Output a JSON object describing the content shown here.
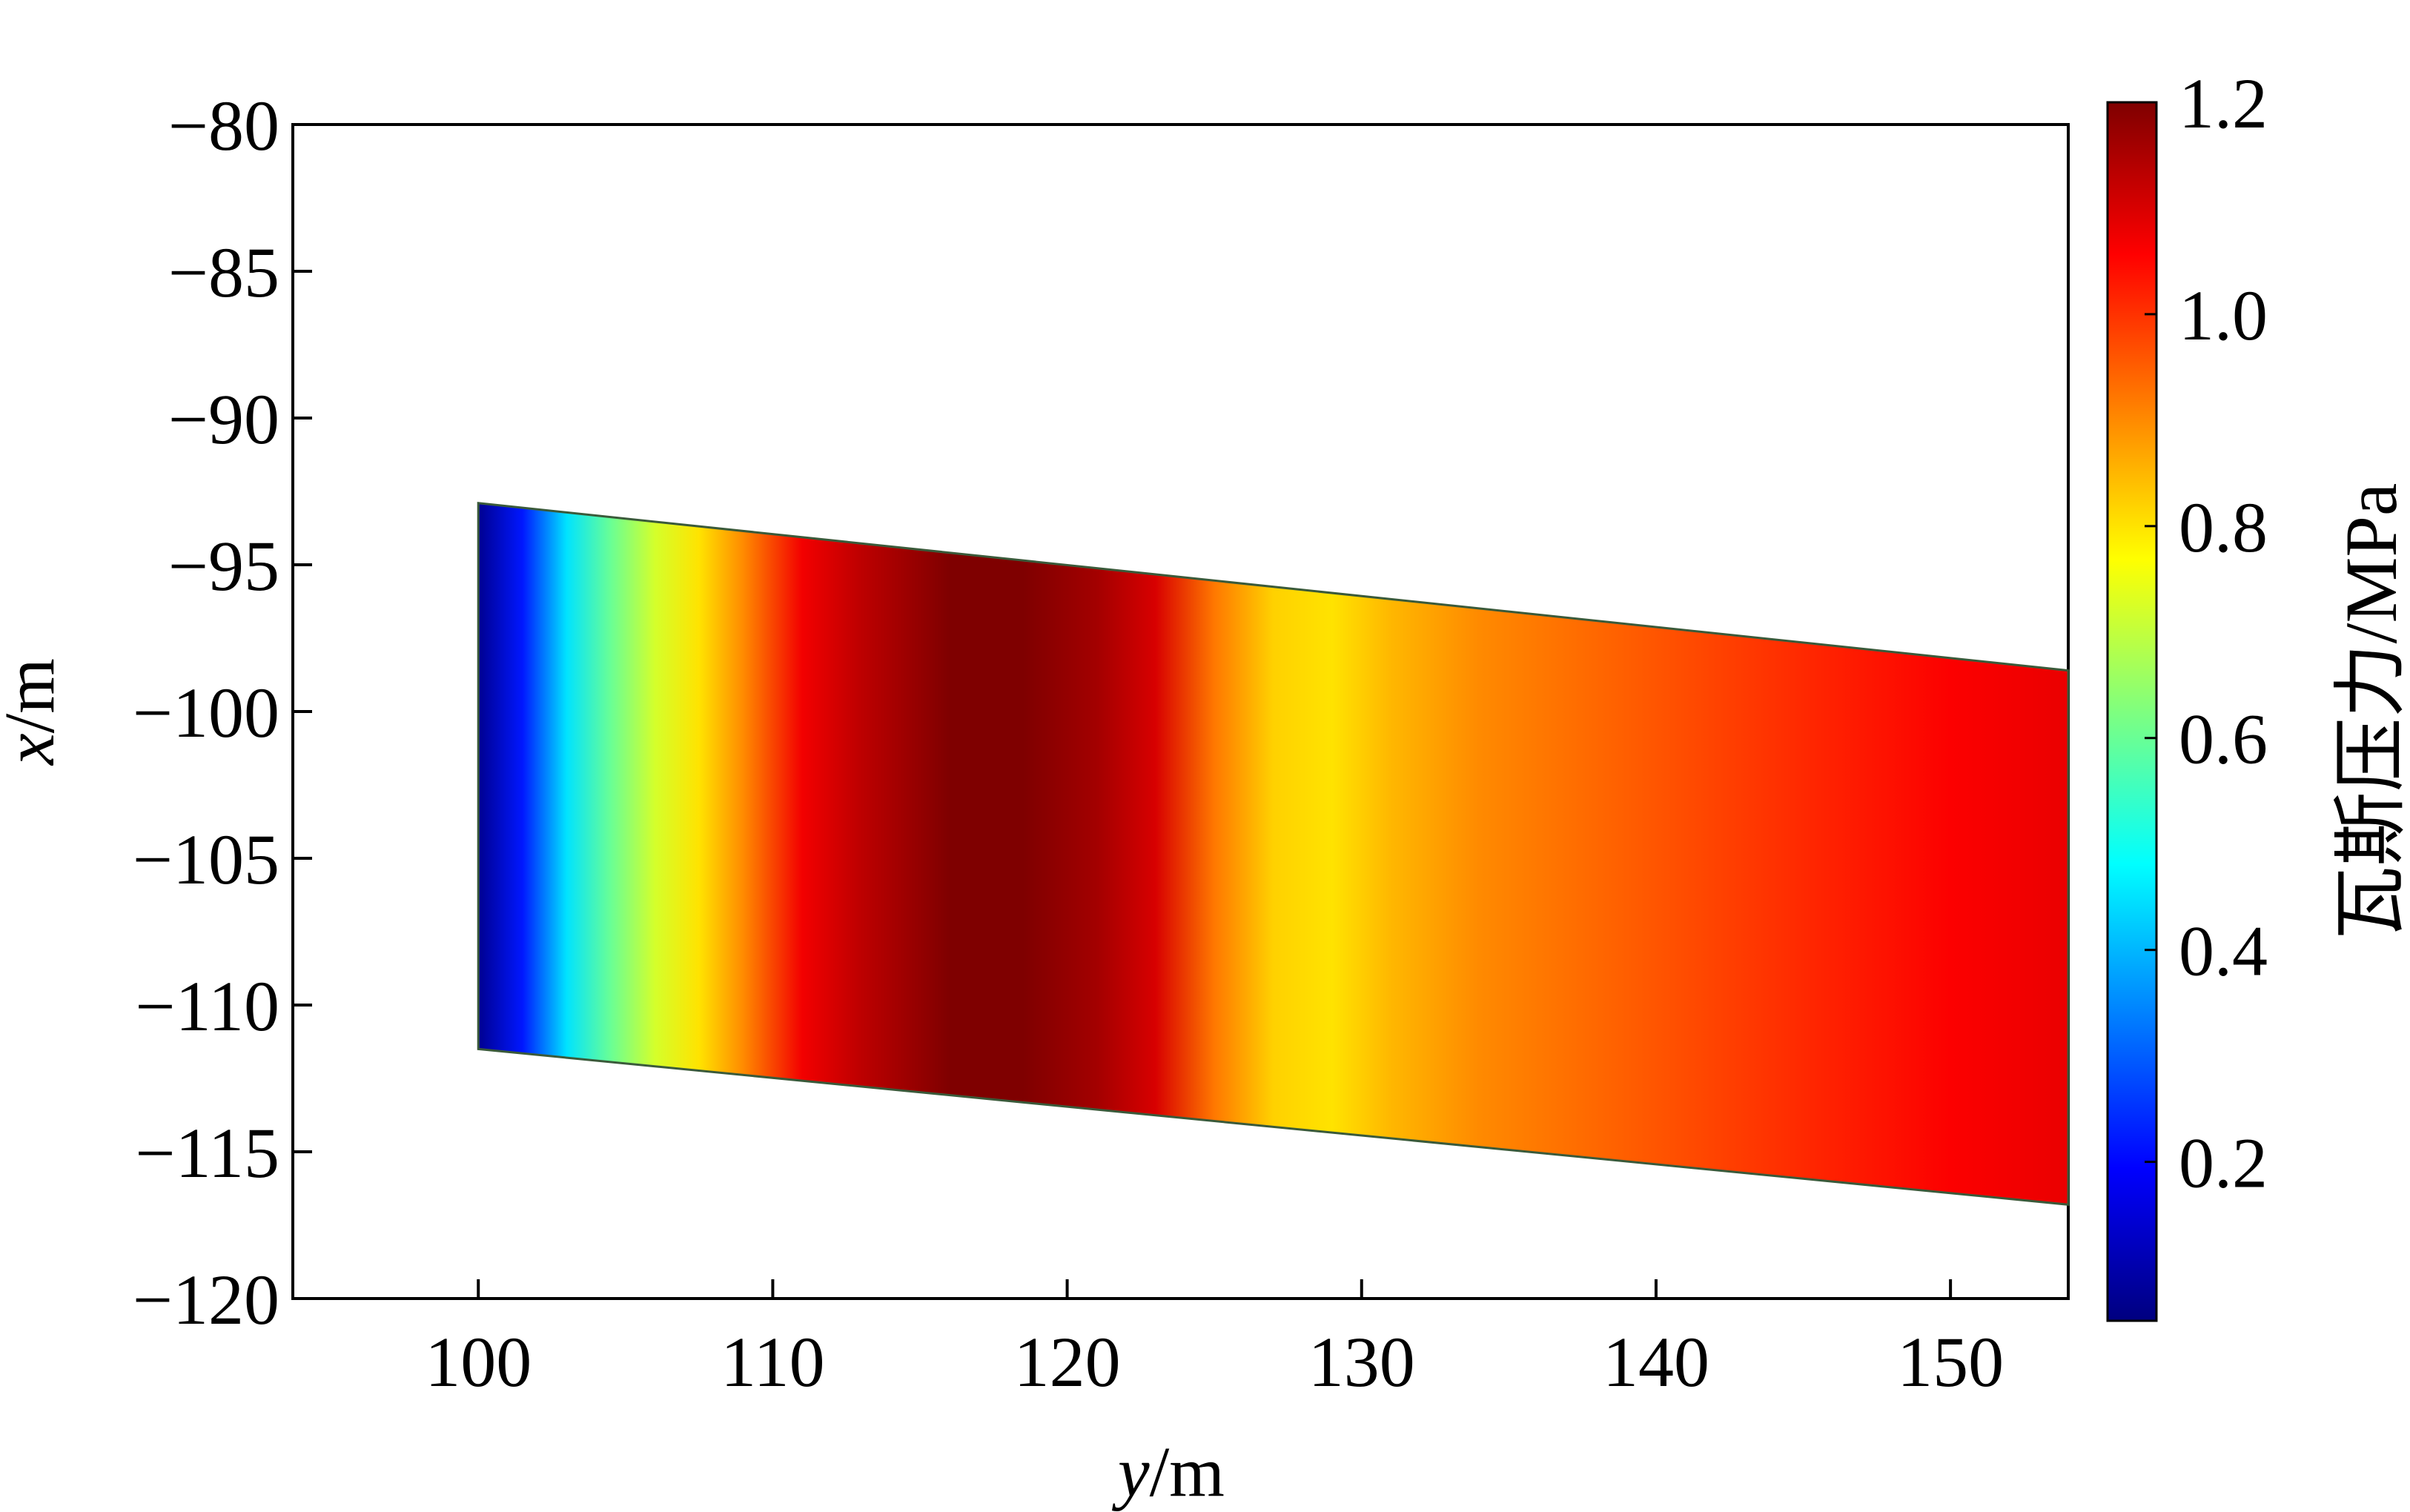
{
  "chart_data": {
    "type": "heatmap",
    "title": "",
    "xlabel": {
      "var": "y",
      "unit": "/m"
    },
    "ylabel": {
      "var": "x",
      "unit": "/m"
    },
    "xlim": [
      93.7,
      154
    ],
    "ylim": [
      -120,
      -80
    ],
    "xticks": [
      100,
      110,
      120,
      130,
      140,
      150
    ],
    "xtick_labels": [
      "100",
      "110",
      "120",
      "130",
      "140",
      "150"
    ],
    "yticks": [
      -80,
      -85,
      -90,
      -95,
      -100,
      -105,
      -110,
      -115,
      -120
    ],
    "ytick_labels": [
      "−80",
      "−85",
      "−90",
      "−95",
      "−100",
      "−105",
      "−110",
      "−115",
      "−120"
    ],
    "grid": false,
    "region": {
      "corners": [
        {
          "y": 100,
          "x": -92.9
        },
        {
          "y": 154,
          "x": -98.6
        },
        {
          "y": 154,
          "x": -116.8
        },
        {
          "y": 100,
          "x": -111.5
        }
      ]
    },
    "gas_pressure_profile": {
      "y": [
        100,
        101.5,
        103,
        104.5,
        106,
        107.5,
        109,
        111,
        113,
        116,
        118.5,
        121,
        123,
        125,
        127,
        129,
        131,
        134,
        138,
        142,
        146,
        150,
        154
      ],
      "value": [
        0.07,
        0.22,
        0.45,
        0.6,
        0.72,
        0.8,
        0.9,
        1.07,
        1.13,
        1.2,
        1.22,
        1.16,
        1.1,
        0.92,
        0.82,
        0.8,
        0.85,
        0.9,
        0.94,
        0.98,
        1.02,
        1.06,
        1.08
      ]
    },
    "colorbar": {
      "label": "瓦斯压力/MPa",
      "range": [
        0.05,
        1.2
      ],
      "ticks": [
        1.2,
        1.0,
        0.8,
        0.6,
        0.4,
        0.2
      ],
      "tick_labels": [
        "1.2",
        "1.0",
        "0.8",
        "0.6",
        "0.4",
        "0.2"
      ],
      "colormap": "jet",
      "colors": [
        "#00007f",
        "#0000ff",
        "#007fff",
        "#00ffff",
        "#7fff7f",
        "#ffff00",
        "#ff7f00",
        "#ff0000",
        "#7f0000"
      ]
    }
  }
}
